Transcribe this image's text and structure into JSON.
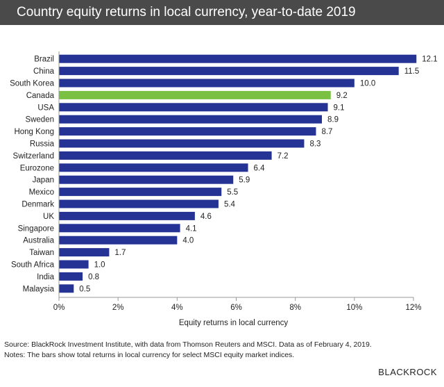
{
  "title": "Country equity returns in local currency, year-to-date 2019",
  "source_line": "Source: BlackRock Investment Institute, with data from Thomson Reuters and MSCI. Data as of February 4, 2019.",
  "notes_line": "Notes: The bars show total returns in local currency for select MSCI equity market indices.",
  "brand": "BLACKROCK",
  "colors": {
    "bar": "#253494",
    "highlight": "#7ac143",
    "title_bg": "#4a4a4a"
  },
  "chart_data": {
    "type": "bar",
    "orientation": "horizontal",
    "title": "Country equity returns in local currency, year-to-date 2019",
    "xlabel": "Equity returns in local currency",
    "ylabel": "",
    "xlim": [
      0,
      12
    ],
    "x_ticks": [
      "0%",
      "2%",
      "4%",
      "6%",
      "8%",
      "10%",
      "12%"
    ],
    "grid": false,
    "highlight_category": "Canada",
    "categories": [
      "Brazil",
      "China",
      "South Korea",
      "Canada",
      "USA",
      "Sweden",
      "Hong Kong",
      "Russia",
      "Switzerland",
      "Eurozone",
      "Japan",
      "Mexico",
      "Denmark",
      "UK",
      "Singapore",
      "Australia",
      "Taiwan",
      "South Africa",
      "India",
      "Malaysia"
    ],
    "values": [
      12.1,
      11.5,
      10.0,
      9.2,
      9.1,
      8.9,
      8.7,
      8.3,
      7.2,
      6.4,
      5.9,
      5.5,
      5.4,
      4.6,
      4.1,
      4.0,
      1.7,
      1.0,
      0.8,
      0.5
    ],
    "value_labels": [
      "12.1",
      "11.5",
      "10.0",
      "9.2",
      "9.1",
      "8.9",
      "8.7",
      "8.3",
      "7.2",
      "6.4",
      "5.9",
      "5.5",
      "5.4",
      "4.6",
      "4.1",
      "4.0",
      "1.7",
      "1.0",
      "0.8",
      "0.5"
    ]
  }
}
